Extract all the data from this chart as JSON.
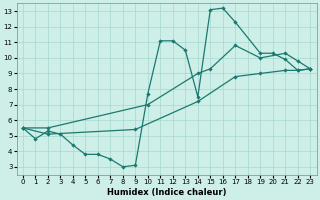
{
  "xlabel": "Humidex (Indice chaleur)",
  "background_color": "#ceeee8",
  "grid_color": "#a8d8d0",
  "line_color": "#1a7a6e",
  "xlim": [
    -0.5,
    23.5
  ],
  "ylim": [
    2.5,
    13.5
  ],
  "xticks": [
    0,
    1,
    2,
    3,
    4,
    5,
    6,
    7,
    8,
    9,
    10,
    11,
    12,
    13,
    14,
    15,
    16,
    17,
    18,
    19,
    20,
    21,
    22,
    23
  ],
  "yticks": [
    3,
    4,
    5,
    6,
    7,
    8,
    9,
    10,
    11,
    12,
    13
  ],
  "line1_x": [
    0,
    1,
    2,
    3,
    4,
    5,
    6,
    7,
    8,
    9,
    10,
    11,
    12,
    13,
    14,
    15,
    16,
    17,
    19,
    20,
    21,
    22,
    23
  ],
  "line1_y": [
    5.5,
    4.8,
    5.3,
    5.1,
    4.4,
    3.8,
    3.8,
    3.5,
    3.0,
    3.1,
    7.7,
    11.1,
    11.1,
    10.5,
    7.5,
    13.1,
    13.2,
    12.3,
    10.3,
    10.3,
    9.9,
    9.2,
    9.3
  ],
  "line2_x": [
    0,
    2,
    10,
    14,
    15,
    17,
    19,
    21,
    22,
    23
  ],
  "line2_y": [
    5.5,
    5.5,
    7.0,
    9.0,
    9.3,
    10.8,
    10.0,
    10.3,
    9.8,
    9.3
  ],
  "line3_x": [
    0,
    2,
    9,
    14,
    17,
    19,
    21,
    22,
    23
  ],
  "line3_y": [
    5.5,
    5.1,
    5.4,
    7.2,
    8.8,
    9.0,
    9.2,
    9.2,
    9.3
  ]
}
